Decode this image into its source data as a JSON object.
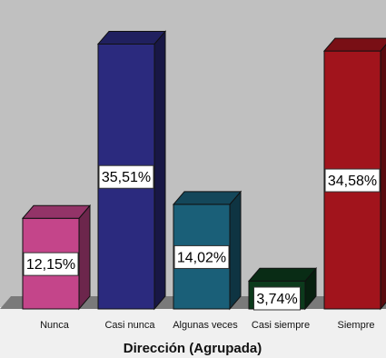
{
  "chart_data": {
    "type": "bar",
    "categories": [
      "Nunca",
      "Casi nunca",
      "Algunas veces",
      "Casi siempre",
      "Siempre"
    ],
    "values": [
      12.15,
      35.51,
      14.02,
      3.74,
      34.58
    ],
    "data_labels": [
      "12,15%",
      "35,51%",
      "14,02%",
      "3,74%",
      "34,58%"
    ],
    "xlabel": "Dirección (Agrupada)",
    "ylabel": "",
    "ylim": [
      0,
      38
    ],
    "grid": false,
    "legend": "none",
    "style": "3d-bars"
  },
  "colors": {
    "plot_background": "#c0c0c0",
    "page_background": "#f0f0f0",
    "floor": "#7a7a7a",
    "bars": [
      "#c4458a",
      "#2b2a7e",
      "#1a5f78",
      "#0c3a1c",
      "#a1141c"
    ]
  }
}
